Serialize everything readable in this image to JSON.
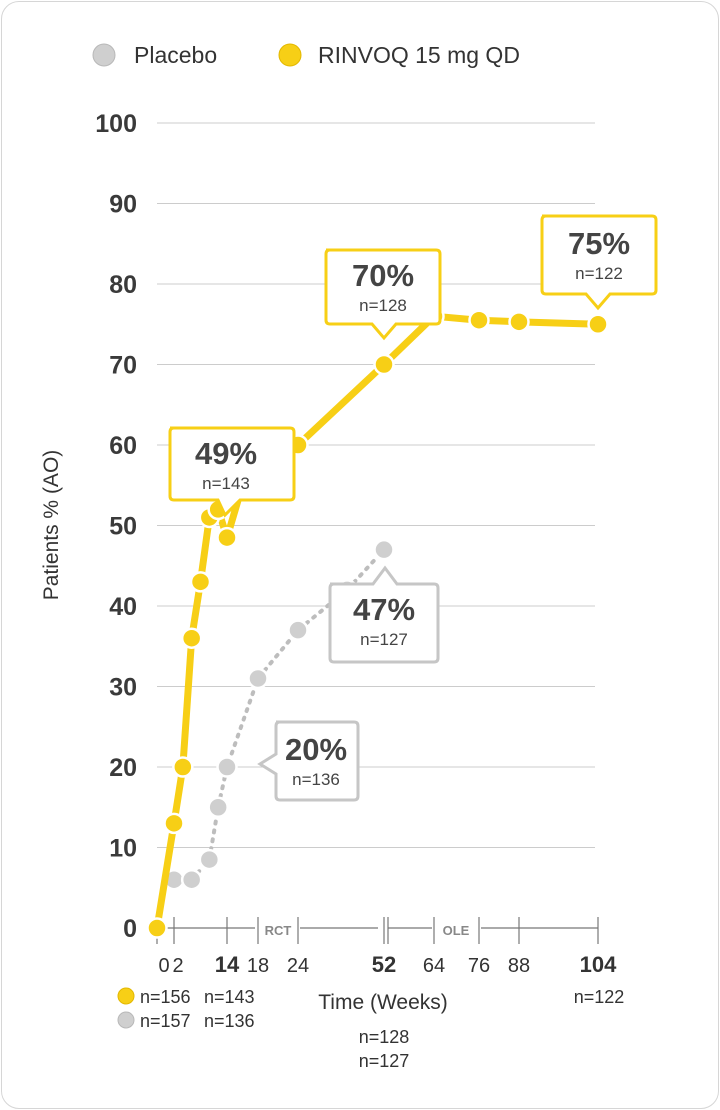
{
  "legend": {
    "placebo_label": "Placebo",
    "rinvoq_label": "RINVOQ 15 mg QD"
  },
  "colors": {
    "rinvoq": "#f7cf16",
    "rinvoq_stroke": "#e3b800",
    "placebo": "#cfcfcf",
    "placebo_stroke": "#b8b8b8",
    "grid": "#cccccc",
    "text": "#333333"
  },
  "axis": {
    "ylabel": "Patients % (AO)",
    "xlabel": "Time (Weeks)",
    "phase_rct": "RCT",
    "phase_ole": "OLE",
    "y_ticks": [
      "0",
      "10",
      "20",
      "30",
      "40",
      "50",
      "60",
      "70",
      "80",
      "90",
      "100"
    ],
    "x_ticks": [
      {
        "value": 0,
        "label": "0",
        "bold": false
      },
      {
        "value": 2,
        "label": "2",
        "bold": false
      },
      {
        "value": 14,
        "label": "14",
        "bold": true
      },
      {
        "value": 18,
        "label": "18",
        "bold": false
      },
      {
        "value": 24,
        "label": "24",
        "bold": false
      },
      {
        "value": 52,
        "label": "52",
        "bold": true
      },
      {
        "value": 64,
        "label": "64",
        "bold": false
      },
      {
        "value": 76,
        "label": "76",
        "bold": false
      },
      {
        "value": 88,
        "label": "88",
        "bold": false
      },
      {
        "value": 104,
        "label": "104",
        "bold": true
      }
    ]
  },
  "n_labels": {
    "rinvoq_baseline": "n=156",
    "placebo_baseline": "n=157",
    "rinvoq_w14": "n=143",
    "placebo_w14": "n=136",
    "rinvoq_w52": "n=128",
    "placebo_w52": "n=127",
    "rinvoq_w104": "n=122"
  },
  "callouts": [
    {
      "series": "rinvoq",
      "pct": "49%",
      "n": "n=143"
    },
    {
      "series": "rinvoq",
      "pct": "70%",
      "n": "n=128"
    },
    {
      "series": "rinvoq",
      "pct": "75%",
      "n": "n=122"
    },
    {
      "series": "placebo",
      "pct": "47%",
      "n": "n=127"
    },
    {
      "series": "placebo",
      "pct": "20%",
      "n": "n=136"
    }
  ],
  "chart_data": {
    "type": "line",
    "xlabel": "Time (Weeks)",
    "ylabel": "Patients % (AO)",
    "ylim": [
      0,
      100
    ],
    "grid": true,
    "legend_position": "top",
    "series": [
      {
        "name": "RINVOQ 15 mg QD",
        "style": "solid",
        "points": [
          {
            "x": 0,
            "y": 0
          },
          {
            "x": 2,
            "y": 13
          },
          {
            "x": 4,
            "y": 20
          },
          {
            "x": 6,
            "y": 36
          },
          {
            "x": 8,
            "y": 43
          },
          {
            "x": 10,
            "y": 51
          },
          {
            "x": 12,
            "y": 52
          },
          {
            "x": 14,
            "y": 48.5
          },
          {
            "x": 16,
            "y": 55
          },
          {
            "x": 20,
            "y": 60
          },
          {
            "x": 24,
            "y": 60
          },
          {
            "x": 52,
            "y": 70
          },
          {
            "x": 64,
            "y": 76
          },
          {
            "x": 76,
            "y": 75.5
          },
          {
            "x": 88,
            "y": 75.3
          },
          {
            "x": 104,
            "y": 75
          }
        ]
      },
      {
        "name": "Placebo",
        "style": "dotted",
        "points": [
          {
            "x": 2,
            "y": 6
          },
          {
            "x": 6,
            "y": 6
          },
          {
            "x": 10,
            "y": 8.5
          },
          {
            "x": 12,
            "y": 15
          },
          {
            "x": 14,
            "y": 20
          },
          {
            "x": 18,
            "y": 31
          },
          {
            "x": 24,
            "y": 37
          },
          {
            "x": 40,
            "y": 42
          },
          {
            "x": 52,
            "y": 47
          }
        ]
      }
    ]
  }
}
